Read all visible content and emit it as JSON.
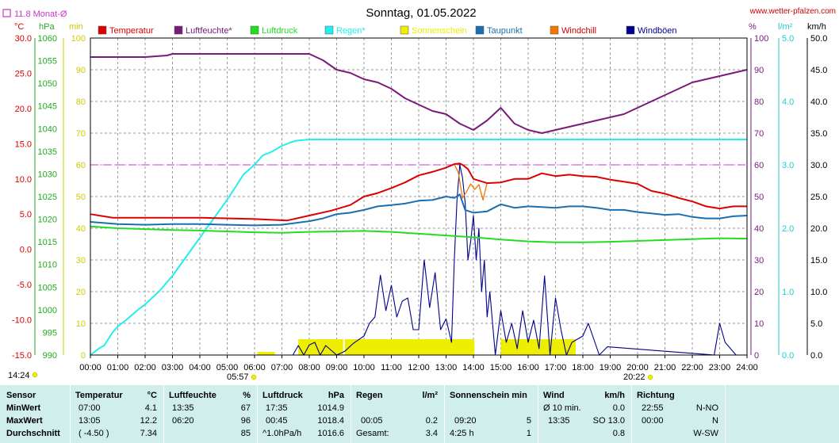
{
  "page": {
    "title": "Sonntag, 01.05.2022",
    "source": "www.wetter-pfalzen.com",
    "monthly_avg": "11.8 Monat-Ø",
    "time_start_label": "14:24",
    "time_mid_label": "05:57",
    "time_end_label": "20:22"
  },
  "colors": {
    "temperatur": "#dd0000",
    "luftfeuchte": "#7a1a7a",
    "luftdruck": "#22dd22",
    "regen": "#22eeee",
    "sonnenschein": "#eeee00",
    "taupunkt": "#1a6fb0",
    "windchill": "#ee7700",
    "windboeen": "#00008b",
    "grid": "#9a9a9a",
    "threshold": "#cc33cc",
    "stats_bg": "#cfeeec"
  },
  "chart_data": {
    "type": "line",
    "title": "Sonntag, 01.05.2022",
    "x_unit": "hours",
    "x_range": [
      0,
      24
    ],
    "x_tick_labels": [
      "00:00",
      "01:00",
      "02:00",
      "03:00",
      "04:00",
      "05:00",
      "06:00",
      "07:00",
      "08:00",
      "09:00",
      "10:00",
      "11:00",
      "12:00",
      "13:00",
      "14:00",
      "15:00",
      "16:00",
      "17:00",
      "18:00",
      "19:00",
      "20:00",
      "21:00",
      "22:00",
      "23:00",
      "24:00"
    ],
    "grid": true,
    "legend": [
      {
        "key": "temperatur",
        "label": "Temperatur"
      },
      {
        "key": "luftfeuchte",
        "label": "Luftfeuchte*"
      },
      {
        "key": "luftdruck",
        "label": "Luftdruck"
      },
      {
        "key": "regen",
        "label": "Regen*"
      },
      {
        "key": "sonnenschein",
        "label": "Sonnenschein"
      },
      {
        "key": "taupunkt",
        "label": "Taupunkt"
      },
      {
        "key": "windchill",
        "label": "Windchill"
      },
      {
        "key": "windboeen",
        "label": "Windböen"
      }
    ],
    "axes": {
      "temp": {
        "unit": "°C",
        "range": [
          -15,
          30
        ],
        "ticks": [
          "30.0",
          "25.0",
          "20.0",
          "15.0",
          "10.0",
          "5.0",
          "0.0",
          "-5.0",
          "-10.0",
          "-15.0"
        ]
      },
      "pressure": {
        "unit": "hPa",
        "range": [
          990,
          1060
        ],
        "ticks": [
          "1060",
          "1055",
          "1050",
          "1045",
          "1040",
          "1035",
          "1030",
          "1025",
          "1020",
          "1015",
          "1010",
          "1005",
          "1000",
          "995",
          "990"
        ]
      },
      "minutes": {
        "unit": "min",
        "range": [
          0,
          100
        ],
        "ticks": [
          "100",
          "90",
          "80",
          "70",
          "60",
          "50",
          "40",
          "30",
          "20",
          "10",
          "0"
        ]
      },
      "humidity": {
        "unit": "%",
        "range": [
          0,
          100
        ],
        "ticks": [
          "100",
          "90",
          "80",
          "70",
          "60",
          "50",
          "40",
          "30",
          "20",
          "10",
          "0"
        ]
      },
      "rain": {
        "unit": "l/m²",
        "range": [
          0,
          5
        ],
        "ticks": [
          "5.0",
          "4.0",
          "3.0",
          "2.0",
          "1.0",
          "0.0"
        ]
      },
      "wind": {
        "unit": "km/h",
        "range": [
          0,
          50
        ],
        "ticks": [
          "50.0",
          "45.0",
          "40.0",
          "35.0",
          "30.0",
          "25.0",
          "20.0",
          "15.0",
          "10.0",
          "5.0",
          "0.0"
        ]
      }
    },
    "threshold_line": {
      "axis": "humidity",
      "value": 60
    },
    "series": [
      {
        "key": "temperatur",
        "name": "Temperatur",
        "axis": "temp",
        "x": [
          0,
          0.8,
          2,
          4,
          6,
          7.2,
          8,
          8.8,
          9.5,
          10,
          10.5,
          11,
          11.5,
          12,
          12.5,
          13,
          13.3,
          13.5,
          13.6,
          13.8,
          14,
          14.5,
          15,
          15.5,
          16,
          16.5,
          17,
          17.5,
          18,
          18.5,
          19,
          19.5,
          20,
          20.5,
          21,
          21.5,
          22,
          22.5,
          23,
          23.5,
          24
        ],
        "y": [
          5,
          4.5,
          4.5,
          4.5,
          4.3,
          4.1,
          4.8,
          5.5,
          6.3,
          7.5,
          8,
          8.7,
          9.5,
          10.5,
          11,
          11.6,
          12.1,
          12.2,
          12,
          11.4,
          10,
          9.4,
          9.5,
          10,
          10,
          10.8,
          10.4,
          10.6,
          10.4,
          10.3,
          9.9,
          9.6,
          9.3,
          8.3,
          7.9,
          7.3,
          6.8,
          6.1,
          5.8,
          6.1,
          6.1
        ]
      },
      {
        "key": "luftfeuchte",
        "name": "Luftfeuchte*",
        "axis": "humidity",
        "x": [
          0,
          2,
          2.8,
          3,
          5,
          8,
          8.5,
          9,
          9.5,
          10,
          10.5,
          11,
          11.5,
          12,
          12.5,
          13,
          13.5,
          14,
          14.5,
          15,
          15.5,
          16,
          16.5,
          17,
          17.5,
          18,
          18.5,
          19,
          19.5,
          20,
          20.5,
          21,
          21.5,
          22,
          22.5,
          23,
          23.5,
          24
        ],
        "y": [
          94,
          94,
          94.5,
          95,
          95,
          95,
          93,
          90,
          89,
          87,
          86,
          84,
          81,
          79,
          77,
          76,
          73,
          71,
          74,
          78,
          73,
          71,
          70,
          71,
          72,
          73,
          74,
          75,
          76,
          78,
          80,
          82,
          84,
          86,
          87,
          88,
          89,
          90
        ]
      },
      {
        "key": "luftdruck",
        "name": "Luftdruck",
        "axis": "pressure",
        "x": [
          0,
          1,
          2,
          3,
          4,
          5,
          6,
          7,
          8,
          9,
          10,
          11,
          12,
          13,
          14,
          15,
          16,
          17,
          18,
          19,
          20,
          21,
          22,
          23,
          24
        ],
        "y": [
          1018.4,
          1018,
          1017.8,
          1017.6,
          1017.5,
          1017.3,
          1017.1,
          1017,
          1017.2,
          1017.3,
          1017.4,
          1017.2,
          1016.8,
          1016.4,
          1016,
          1015.5,
          1015.1,
          1014.9,
          1014.9,
          1015,
          1015.2,
          1015.4,
          1015.6,
          1015.8,
          1015.7
        ]
      },
      {
        "key": "regen",
        "name": "Regen*",
        "axis": "rain",
        "x": [
          0,
          0.3,
          0.5,
          0.8,
          1,
          1.3,
          1.7,
          2,
          2.5,
          3,
          3.5,
          4,
          4.5,
          5,
          5.3,
          5.6,
          6,
          6.3,
          6.6,
          7,
          7.3,
          7.5,
          8,
          12,
          16,
          20,
          24
        ],
        "y": [
          0,
          0.1,
          0.15,
          0.35,
          0.45,
          0.55,
          0.7,
          0.8,
          1.0,
          1.25,
          1.55,
          1.85,
          2.15,
          2.45,
          2.65,
          2.85,
          3.0,
          3.15,
          3.2,
          3.3,
          3.35,
          3.38,
          3.4,
          3.4,
          3.4,
          3.4,
          3.4
        ]
      },
      {
        "key": "sonnenschein",
        "name": "Sonnenschein",
        "axis": "minutes",
        "x": [
          6.1,
          7.6,
          7.9,
          8.3,
          8.6,
          9.3,
          9.6,
          9.9,
          10.3,
          10.6,
          11.0,
          11.3,
          11.6,
          11.9,
          12.2,
          12.5,
          12.8,
          13.1,
          13.4,
          15,
          15.3,
          15.6,
          15.9,
          16.2,
          16.5,
          16.8,
          17.1
        ],
        "y": [
          1,
          5,
          5,
          5,
          5,
          5,
          5,
          5,
          5,
          5,
          5,
          5,
          5,
          5,
          5,
          5,
          5,
          5,
          5,
          5,
          5,
          5,
          5,
          5,
          5,
          5,
          5
        ]
      },
      {
        "key": "taupunkt",
        "name": "Taupunkt",
        "axis": "temp",
        "x": [
          0,
          1,
          2,
          3,
          4,
          5,
          6,
          7,
          8,
          8.5,
          9,
          9.5,
          10,
          10.5,
          11,
          11.5,
          12,
          12.5,
          13,
          13.3,
          13.5,
          13.7,
          14,
          14.5,
          15,
          15.5,
          16,
          16.5,
          17,
          17.5,
          18,
          18.5,
          19,
          19.5,
          20,
          20.5,
          21,
          21.5,
          22,
          22.5,
          23,
          23.5,
          24
        ],
        "y": [
          3.9,
          3.6,
          3.5,
          3.6,
          3.6,
          3.5,
          3.4,
          3.5,
          4.0,
          4.4,
          5.0,
          5.2,
          5.6,
          6.1,
          6.3,
          6.5,
          6.9,
          7.0,
          7.5,
          7.3,
          7.8,
          5.6,
          5.2,
          5.4,
          6.4,
          5.9,
          6.1,
          6.0,
          5.9,
          6.1,
          6.1,
          5.9,
          5.6,
          5.6,
          5.3,
          5.1,
          4.9,
          5.0,
          4.6,
          4.4,
          4.4,
          4.7,
          4.8
        ]
      },
      {
        "key": "windchill",
        "name": "Windchill",
        "axis": "temp",
        "x": [
          13.3,
          13.45,
          13.6,
          13.75,
          13.9,
          14.05,
          14.2,
          14.35,
          14.5
        ],
        "y": [
          12.1,
          10.9,
          7.3,
          8.2,
          9.3,
          8.5,
          9.2,
          7.0,
          9.5
        ]
      },
      {
        "key": "windboeen",
        "name": "Windböen",
        "axis": "wind",
        "x": [
          7.4,
          7.6,
          7.8,
          8.0,
          8.2,
          8.4,
          8.6,
          9.0,
          9.3,
          9.6,
          10.0,
          10.2,
          10.4,
          10.6,
          10.8,
          11.0,
          11.2,
          11.4,
          11.6,
          11.8,
          12.0,
          12.2,
          12.4,
          12.6,
          12.8,
          13.0,
          13.2,
          13.3,
          13.4,
          13.5,
          13.6,
          13.7,
          13.8,
          13.9,
          14.0,
          14.1,
          14.2,
          14.3,
          14.4,
          14.5,
          14.6,
          14.8,
          15.0,
          15.2,
          15.4,
          15.6,
          15.8,
          16.0,
          16.2,
          16.4,
          16.6,
          16.8,
          17.0,
          17.2,
          17.4,
          17.6,
          18.0,
          18.2,
          18.6,
          18.9,
          22.8,
          23.0,
          23.2,
          23.6
        ],
        "y": [
          0,
          1.5,
          0,
          1.6,
          2,
          0,
          1.5,
          0,
          0.6,
          1.8,
          3,
          5,
          6,
          12.6,
          7,
          11,
          6,
          8.5,
          9,
          4,
          4,
          15,
          7.5,
          13,
          4,
          5.7,
          2,
          15,
          24.5,
          30,
          28,
          24,
          15,
          18,
          22,
          15,
          20,
          10,
          15,
          6,
          10,
          0,
          7,
          2,
          5,
          1,
          7,
          2,
          5.5,
          1,
          12.5,
          0,
          9,
          4,
          0,
          2,
          3,
          5,
          0,
          1.3,
          0,
          5,
          2,
          0
        ]
      }
    ]
  },
  "stats": {
    "sensor": {
      "header": "Sensor",
      "rows": [
        "MinWert",
        "MaxWert",
        "Durchschnitt"
      ]
    },
    "temperatur": {
      "header": "Temperatur",
      "unit": "°C",
      "times": [
        "07:00",
        "13:05",
        "( -4.50 )"
      ],
      "values": [
        "4.1",
        "12.2",
        "7.34"
      ]
    },
    "luftfeuchte": {
      "header": "Luftfeuchte",
      "unit": "%",
      "times": [
        "13:35",
        "06:20",
        ""
      ],
      "values": [
        "67",
        "96",
        "85"
      ]
    },
    "luftdruck": {
      "header": "Luftdruck",
      "unit": "hPa",
      "times": [
        "17:35",
        "00:45",
        "^1.0hPa/h"
      ],
      "values": [
        "1014.9",
        "1018.4",
        "1016.6"
      ]
    },
    "regen": {
      "header": "Regen",
      "unit": "l/m²",
      "times": [
        "",
        "00:05",
        "Gesamt:"
      ],
      "values": [
        "",
        "0.2",
        "3.4"
      ]
    },
    "sonnenschein": {
      "header": "Sonnenschein min",
      "unit": "",
      "times": [
        "",
        "09:20",
        "4:25 h"
      ],
      "values": [
        "",
        "5",
        "1"
      ]
    },
    "wind": {
      "header": "Wind",
      "unit": "km/h",
      "times": [
        "Ø 10 min.",
        "13:35",
        ""
      ],
      "values": [
        "0.0",
        "SO 13.0",
        "0.8"
      ]
    },
    "richtung": {
      "header": "Richtung",
      "unit": "",
      "times": [
        "22:55",
        "00:00",
        ""
      ],
      "values": [
        "N-NO",
        "N",
        "W-SW"
      ]
    }
  }
}
